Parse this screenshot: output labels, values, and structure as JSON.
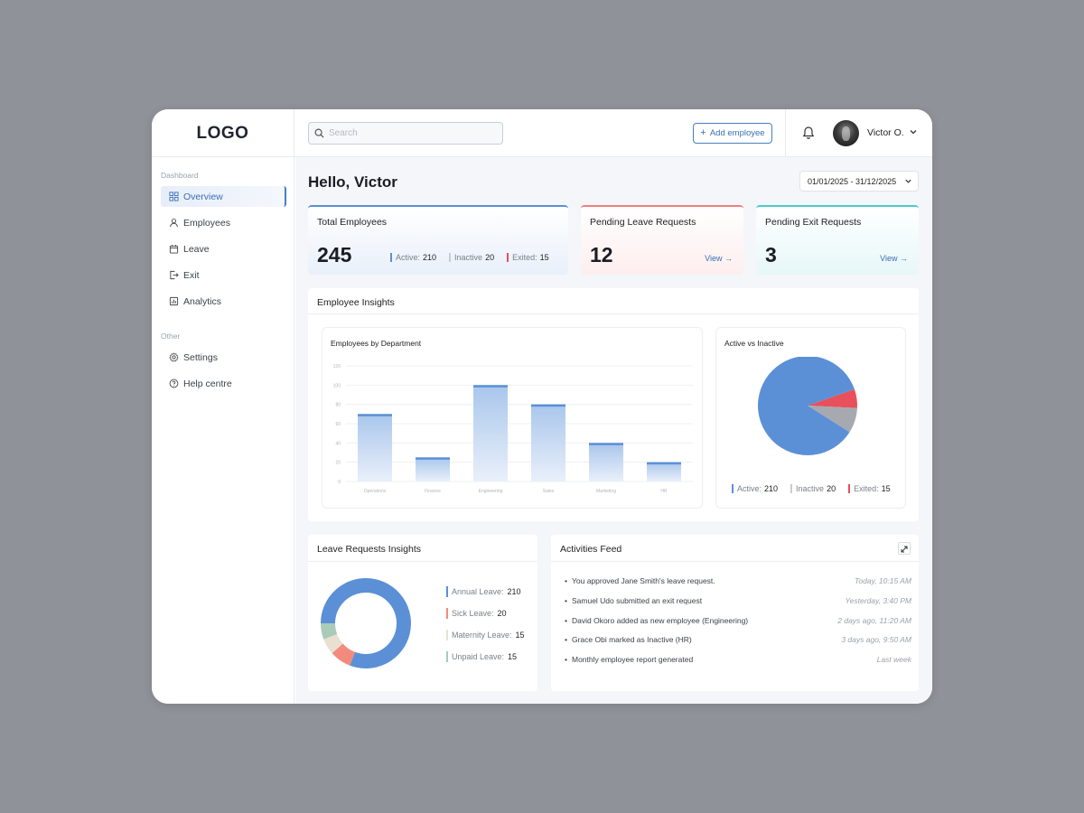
{
  "app": {
    "logo": "LOGO"
  },
  "topbar": {
    "search_placeholder": "Search",
    "add_button": "Add employee",
    "add_icon": "plus-icon",
    "user_name": "Victor O."
  },
  "sidebar": {
    "dashboard_label": "Dashboard",
    "other_label": "Other",
    "items": [
      {
        "label": "Overview",
        "icon": "grid-icon",
        "active": true
      },
      {
        "label": "Employees",
        "icon": "user-icon"
      },
      {
        "label": "Leave",
        "icon": "calendar-icon"
      },
      {
        "label": "Exit",
        "icon": "exit-icon"
      },
      {
        "label": "Analytics",
        "icon": "chart-icon"
      }
    ],
    "other_items": [
      {
        "label": "Settings",
        "icon": "gear-icon"
      },
      {
        "label": "Help centre",
        "icon": "help-icon"
      }
    ]
  },
  "main": {
    "greeting": "Hello, Victor",
    "date_range": "01/01/2025 - 31/12/2025"
  },
  "stats": {
    "total": {
      "title": "Total Employees",
      "value": "245",
      "active_label": "Active:",
      "active": "210",
      "inactive_label": "Inactive",
      "inactive": "20",
      "exited_label": "Exited:",
      "exited": "15"
    },
    "leave": {
      "title": "Pending Leave Requests",
      "value": "12",
      "view": "View"
    },
    "exit": {
      "title": "Pending Exit Requests",
      "value": "3",
      "view": "View"
    }
  },
  "insights": {
    "title": "Employee Insights",
    "dept_title": "Employees by Department",
    "pie_title": "Active vs Inactive",
    "pie_legend": {
      "active_label": "Active:",
      "active": "210",
      "inactive_label": "Inactive",
      "inactive": "20",
      "exited_label": "Exited:",
      "exited": "15"
    }
  },
  "leave_insights": {
    "title": "Leave Requests Insights",
    "items": [
      {
        "label": "Annual Leave:",
        "value": "210",
        "color": "#5b90d6"
      },
      {
        "label": "Sick Leave:",
        "value": "20",
        "color": "#f28b7e"
      },
      {
        "label": "Maternity Leave:",
        "value": "15",
        "color": "#eae0d2"
      },
      {
        "label": "Unpaid Leave:",
        "value": "15",
        "color": "#a9cbb7"
      }
    ]
  },
  "feed": {
    "title": "Activities Feed",
    "rows": [
      {
        "text": "You approved Jane Smith's leave request.",
        "time": "Today, 10:15 AM"
      },
      {
        "text": "Samuel Udo submitted an exit request",
        "time": "Yesterday, 3:40 PM"
      },
      {
        "text": "David Okoro added as new employee (Engineering)",
        "time": "2 days ago, 11:20 AM"
      },
      {
        "text": "Grace Obi marked as Inactive (HR)",
        "time": "3 days ago, 9:50 AM"
      },
      {
        "text": "Monthly employee report generated",
        "time": "Last week"
      }
    ]
  },
  "colors": {
    "accent": "#4a7fc1",
    "bar": "#5b90d6",
    "inactive": "#a6a9b0",
    "exited": "#e8505b"
  },
  "chart_data": [
    {
      "type": "bar",
      "title": "Employees by Department",
      "categories": [
        "Operations",
        "Finance",
        "Engineering",
        "Sales",
        "Marketing",
        "HR"
      ],
      "values": [
        70,
        25,
        100,
        80,
        40,
        20
      ],
      "ylim": [
        0,
        120
      ],
      "yticks": [
        0,
        20,
        40,
        60,
        80,
        100,
        120
      ],
      "grid": true
    },
    {
      "type": "pie",
      "title": "Active vs Inactive",
      "labels": [
        "Active",
        "Inactive",
        "Exited"
      ],
      "values": [
        210,
        20,
        15
      ],
      "colors": [
        "#5b90d6",
        "#a6a9b0",
        "#e8505b"
      ]
    },
    {
      "type": "pie",
      "title": "Leave Requests Insights",
      "donut": true,
      "labels": [
        "Annual Leave",
        "Sick Leave",
        "Maternity Leave",
        "Unpaid Leave"
      ],
      "values": [
        210,
        20,
        15,
        15
      ],
      "colors": [
        "#5b90d6",
        "#f28b7e",
        "#eae0d2",
        "#a9cbb7"
      ]
    }
  ]
}
